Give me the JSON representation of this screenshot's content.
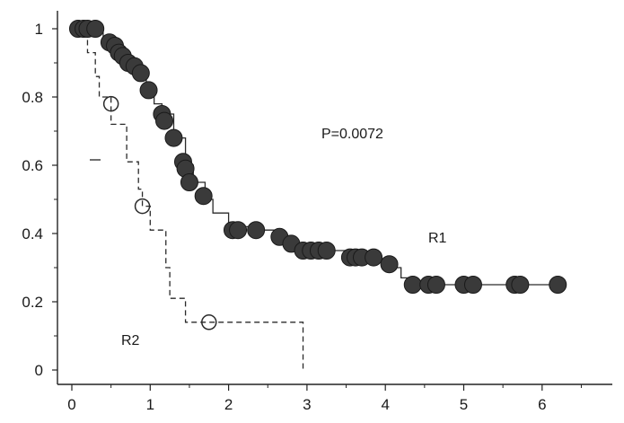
{
  "chart_data": {
    "type": "line",
    "title": "",
    "xlabel": "",
    "ylabel": "",
    "xlim": [
      0,
      7
    ],
    "ylim": [
      0,
      1
    ],
    "x_ticks": [
      0,
      1,
      2,
      3,
      4,
      5,
      6
    ],
    "y_ticks": [
      0,
      0.2,
      0.4,
      0.6,
      0.8,
      1
    ],
    "x_tick_labels": [
      "0",
      "1",
      "2",
      "3",
      "4",
      "5",
      "6"
    ],
    "y_tick_labels": [
      "0",
      "0.2",
      "0.4",
      "0.6",
      "0.8",
      "1"
    ],
    "grid": false,
    "annotation": "P=0.0072",
    "series": [
      {
        "name": "R1",
        "style": "solid-step",
        "marker": "filled-circle",
        "color": "#2a2a2a",
        "steps": [
          [
            0,
            1.0
          ],
          [
            0.4,
            0.96
          ],
          [
            0.5,
            0.93
          ],
          [
            0.6,
            0.91
          ],
          [
            0.7,
            0.89
          ],
          [
            0.8,
            0.87
          ],
          [
            0.95,
            0.82
          ],
          [
            1.05,
            0.78
          ],
          [
            1.15,
            0.75
          ],
          [
            1.3,
            0.68
          ],
          [
            1.45,
            0.6
          ],
          [
            1.55,
            0.55
          ],
          [
            1.7,
            0.5
          ],
          [
            1.8,
            0.46
          ],
          [
            2.0,
            0.42
          ],
          [
            2.3,
            0.41
          ],
          [
            2.6,
            0.39
          ],
          [
            2.75,
            0.37
          ],
          [
            2.9,
            0.36
          ],
          [
            3.2,
            0.35
          ],
          [
            3.5,
            0.34
          ],
          [
            3.6,
            0.33
          ],
          [
            3.9,
            0.32
          ],
          [
            4.1,
            0.3
          ],
          [
            4.2,
            0.27
          ],
          [
            4.3,
            0.25
          ]
        ],
        "end_x": 6.2,
        "markers": [
          [
            0.08,
            1.0
          ],
          [
            0.15,
            1.0
          ],
          [
            0.2,
            1.0
          ],
          [
            0.3,
            1.0
          ],
          [
            0.48,
            0.96
          ],
          [
            0.55,
            0.95
          ],
          [
            0.6,
            0.93
          ],
          [
            0.65,
            0.92
          ],
          [
            0.72,
            0.9
          ],
          [
            0.8,
            0.89
          ],
          [
            0.88,
            0.87
          ],
          [
            0.98,
            0.82
          ],
          [
            1.15,
            0.75
          ],
          [
            1.18,
            0.73
          ],
          [
            1.3,
            0.68
          ],
          [
            1.42,
            0.61
          ],
          [
            1.45,
            0.59
          ],
          [
            1.5,
            0.55
          ],
          [
            1.68,
            0.51
          ],
          [
            2.05,
            0.41
          ],
          [
            2.12,
            0.41
          ],
          [
            2.35,
            0.41
          ],
          [
            2.65,
            0.39
          ],
          [
            2.8,
            0.37
          ],
          [
            2.95,
            0.35
          ],
          [
            3.05,
            0.35
          ],
          [
            3.15,
            0.35
          ],
          [
            3.25,
            0.35
          ],
          [
            3.55,
            0.33
          ],
          [
            3.62,
            0.33
          ],
          [
            3.7,
            0.33
          ],
          [
            3.85,
            0.33
          ],
          [
            4.05,
            0.31
          ],
          [
            4.35,
            0.25
          ],
          [
            4.55,
            0.25
          ],
          [
            4.65,
            0.25
          ],
          [
            5.0,
            0.25
          ],
          [
            5.12,
            0.25
          ],
          [
            5.65,
            0.25
          ],
          [
            5.72,
            0.25
          ],
          [
            6.2,
            0.25
          ]
        ]
      },
      {
        "name": "R2",
        "style": "dashed-step",
        "marker": "open-circle",
        "color": "#2a2a2a",
        "steps": [
          [
            0,
            1.0
          ],
          [
            0.2,
            0.93
          ],
          [
            0.3,
            0.86
          ],
          [
            0.35,
            0.8
          ],
          [
            0.5,
            0.72
          ],
          [
            0.7,
            0.61
          ],
          [
            0.85,
            0.53
          ],
          [
            0.9,
            0.48
          ],
          [
            1.0,
            0.41
          ],
          [
            1.2,
            0.3
          ],
          [
            1.25,
            0.21
          ],
          [
            1.45,
            0.14
          ]
        ],
        "end_x": 2.95,
        "drop_to": 0,
        "markers": [
          [
            0.5,
            0.78
          ],
          [
            0.9,
            0.48
          ],
          [
            1.75,
            0.14
          ]
        ]
      }
    ]
  }
}
